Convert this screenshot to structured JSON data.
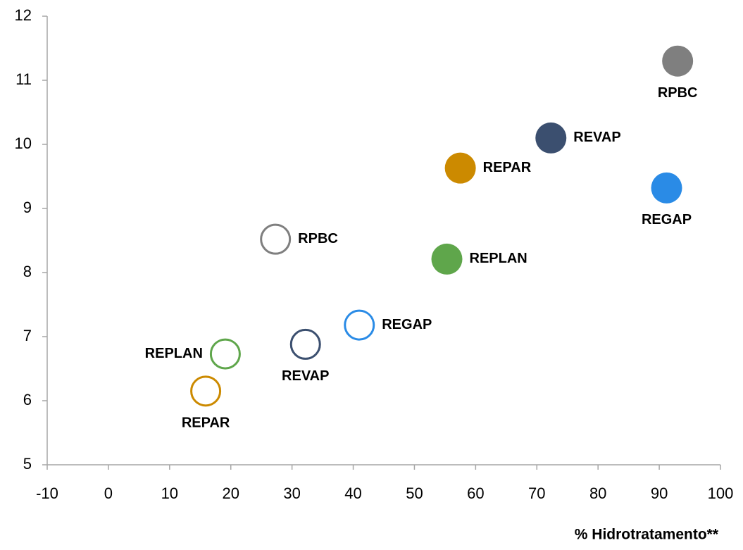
{
  "chart_data": {
    "type": "scatter",
    "x_label": "% Hidrotratamento**",
    "xlim": [
      -10,
      100
    ],
    "xticks": [
      -10,
      0,
      10,
      20,
      30,
      40,
      50,
      60,
      70,
      80,
      90,
      100
    ],
    "ylim": [
      5,
      12
    ],
    "yticks": [
      5,
      6,
      7,
      8,
      9,
      10,
      11,
      12
    ],
    "grid": false,
    "points": [
      {
        "label": "RPBC",
        "x": 93,
        "y": 11.3,
        "color": "#7f7f7f",
        "filled": true,
        "label_position": "below"
      },
      {
        "label": "REVAP",
        "x": 72.3,
        "y": 10.1,
        "color": "#3b4f6f",
        "filled": true,
        "label_position": "right"
      },
      {
        "label": "REPAR",
        "x": 57.5,
        "y": 9.63,
        "color": "#cc8a00",
        "filled": true,
        "label_position": "right"
      },
      {
        "label": "REGAP",
        "x": 91.2,
        "y": 9.32,
        "color": "#2a8be6",
        "filled": true,
        "label_position": "below"
      },
      {
        "label": "REPLAN",
        "x": 55.3,
        "y": 8.21,
        "color": "#5fa64b",
        "filled": true,
        "label_position": "right"
      },
      {
        "label": "RPBC",
        "x": 27.3,
        "y": 8.52,
        "color": "#7f7f7f",
        "filled": false,
        "label_position": "right"
      },
      {
        "label": "REGAP",
        "x": 41,
        "y": 7.18,
        "color": "#2a8be6",
        "filled": false,
        "label_position": "right"
      },
      {
        "label": "REVAP",
        "x": 32.2,
        "y": 6.88,
        "color": "#3b4f6f",
        "filled": false,
        "label_position": "below"
      },
      {
        "label": "REPLAN",
        "x": 19.1,
        "y": 6.73,
        "color": "#5fa64b",
        "filled": false,
        "label_position": "left"
      },
      {
        "label": "REPAR",
        "x": 15.9,
        "y": 6.15,
        "color": "#cc8a00",
        "filled": false,
        "label_position": "below"
      }
    ]
  }
}
